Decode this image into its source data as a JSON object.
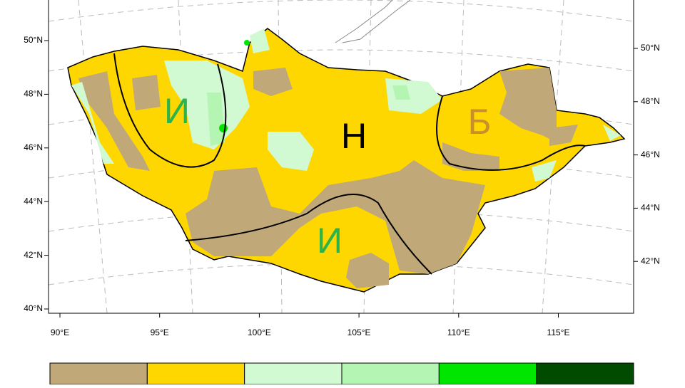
{
  "map": {
    "lat_labels_left": [
      "50°N",
      "48°N",
      "46°N",
      "44°N",
      "42°N",
      "40°N"
    ],
    "lat_labels_right": [
      "50°N",
      "48°N",
      "46°N",
      "44°N",
      "42°N"
    ],
    "lon_labels": [
      "90°E",
      "95°E",
      "100°E",
      "105°E",
      "110°E",
      "115°E"
    ],
    "region_labels": [
      "И",
      "Н",
      "Б",
      "И"
    ],
    "colorbar": [
      "#c0a878",
      "#ffd700",
      "#d2fad2",
      "#b4f5b4",
      "#00e600",
      "#004b00"
    ]
  }
}
